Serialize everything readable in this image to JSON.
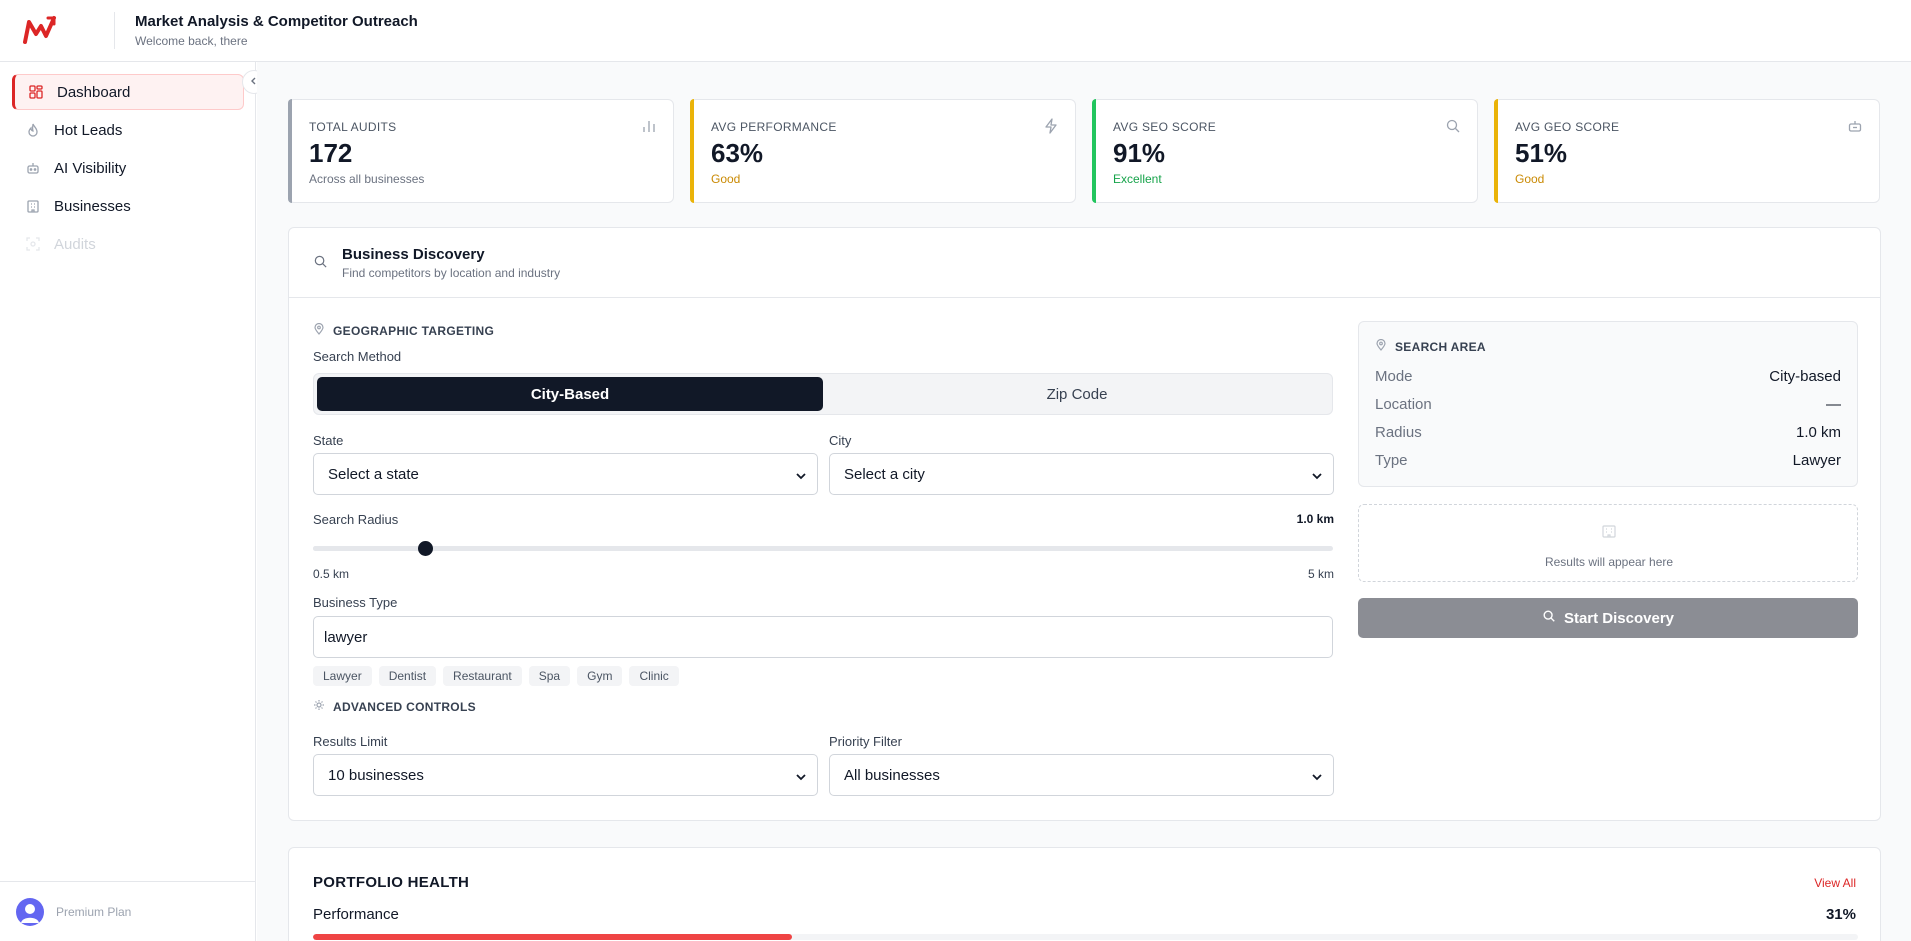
{
  "header": {
    "title": "Market Analysis & Competitor Outreach",
    "subtitle": "Welcome back, there"
  },
  "sidebar": {
    "items": [
      {
        "label": "Dashboard",
        "icon": "grid-icon",
        "active": true
      },
      {
        "label": "Hot Leads",
        "icon": "flame-icon"
      },
      {
        "label": "AI Visibility",
        "icon": "bot-icon"
      },
      {
        "label": "Businesses",
        "icon": "building-icon"
      },
      {
        "label": "Audits",
        "icon": "scan-icon",
        "disabled": true
      }
    ],
    "footer": {
      "plan": "Premium Plan"
    }
  },
  "stats": [
    {
      "label": "TOTAL AUDITS",
      "value": "172",
      "sub": "Across all businesses",
      "accent": "#9ca3af",
      "sub_color": "#6b7280",
      "icon": "bar-chart-icon"
    },
    {
      "label": "AVG PERFORMANCE",
      "value": "63%",
      "sub": "Good",
      "accent": "#eab308",
      "sub_color": "#ca8a04",
      "icon": "zap-icon"
    },
    {
      "label": "AVG SEO SCORE",
      "value": "91%",
      "sub": "Excellent",
      "accent": "#22c55e",
      "sub_color": "#16a34a",
      "icon": "search-icon"
    },
    {
      "label": "AVG GEO SCORE",
      "value": "51%",
      "sub": "Good",
      "accent": "#eab308",
      "sub_color": "#ca8a04",
      "icon": "bot-icon"
    }
  ],
  "discovery": {
    "title": "Business Discovery",
    "subtitle": "Find competitors by location and industry",
    "geo_label": "GEOGRAPHIC TARGETING",
    "method_label": "Search Method",
    "methods": [
      "City-Based",
      "Zip Code"
    ],
    "state_label": "State",
    "state_value": "Select a state",
    "city_label": "City",
    "city_value": "Select a city",
    "radius_label": "Search Radius",
    "radius_value": "1.0 km",
    "radius_min": "0.5 km",
    "radius_max": "5 km",
    "radius_fraction": 0.11,
    "type_label": "Business Type",
    "type_value": "lawyer",
    "chips": [
      "Lawyer",
      "Dentist",
      "Restaurant",
      "Spa",
      "Gym",
      "Clinic"
    ],
    "advanced_label": "ADVANCED CONTROLS",
    "limit_label": "Results Limit",
    "limit_value": "10 businesses",
    "priority_label": "Priority Filter",
    "priority_value": "All businesses"
  },
  "search_area": {
    "title": "SEARCH AREA",
    "rows": [
      {
        "k": "Mode",
        "v": "City-based"
      },
      {
        "k": "Location",
        "v": "—"
      },
      {
        "k": "Radius",
        "v": "1.0 km"
      },
      {
        "k": "Type",
        "v": "Lawyer"
      }
    ],
    "results_placeholder": "Results will appear here",
    "start_button": "Start Discovery"
  },
  "portfolio": {
    "title": "PORTFOLIO HEALTH",
    "link": "View All",
    "metric": "Performance",
    "percent": "31%",
    "fraction": 0.31
  }
}
